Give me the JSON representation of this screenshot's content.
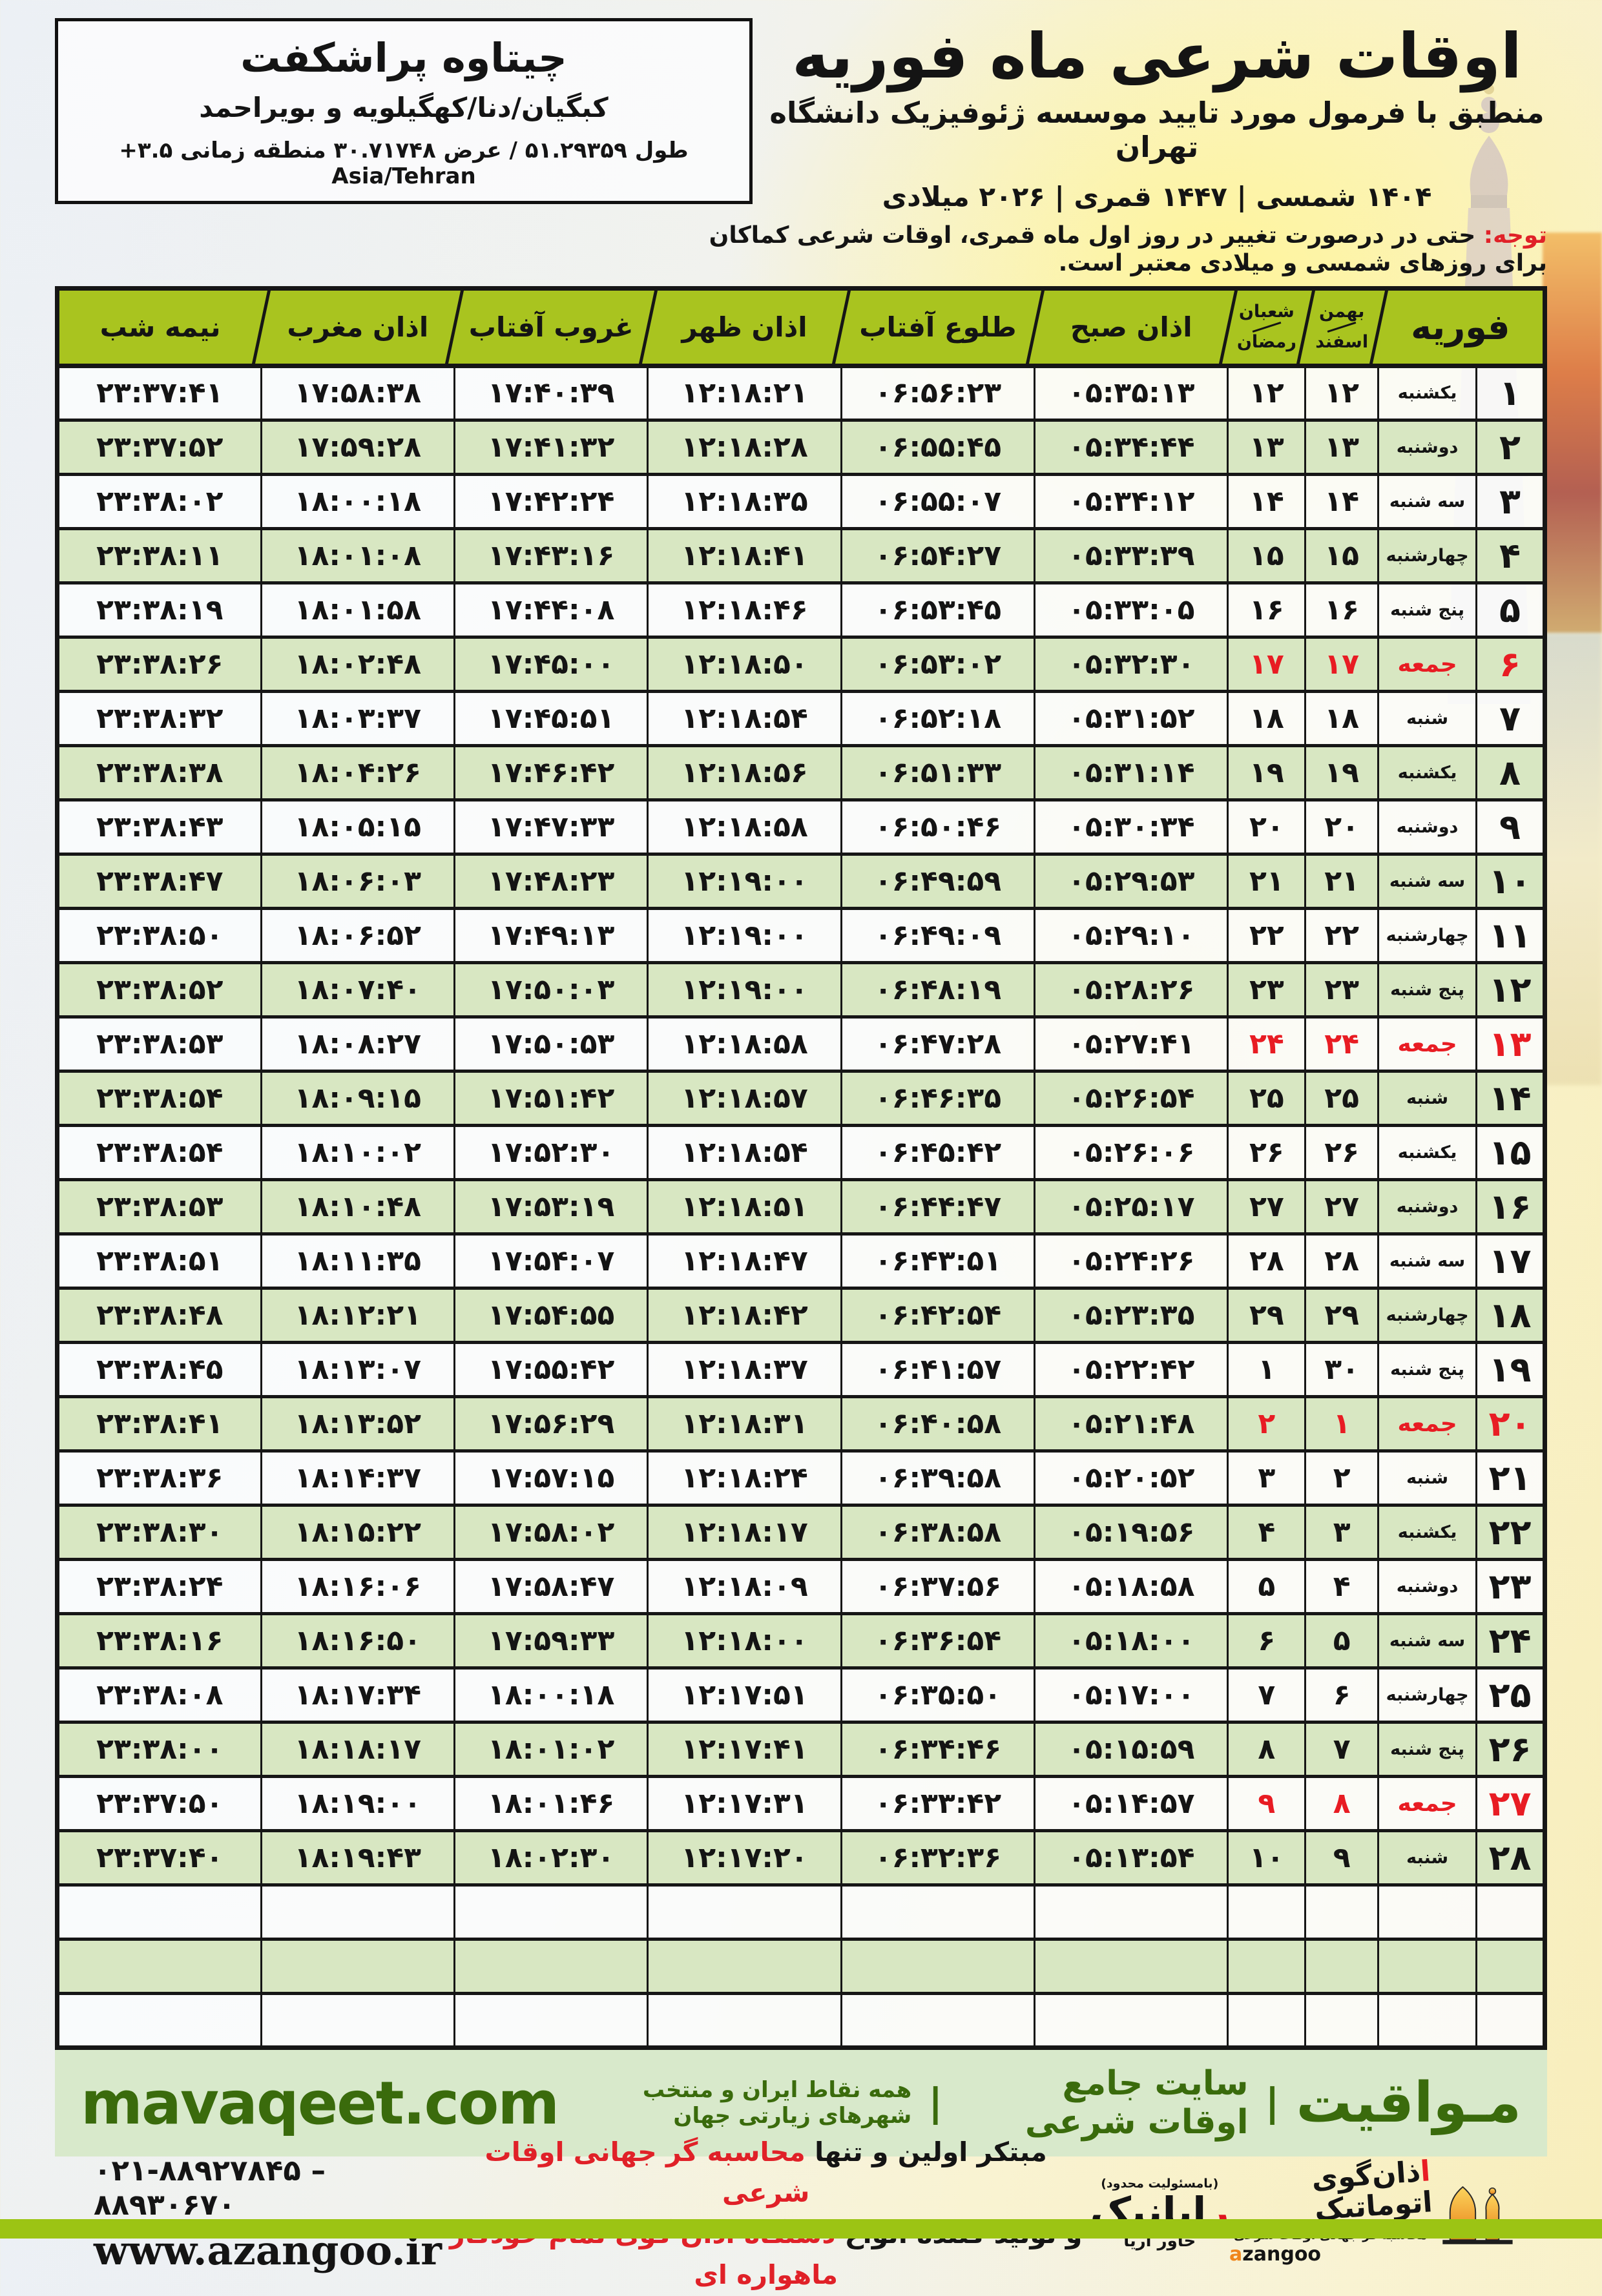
{
  "colors": {
    "header_green": "#a9c41f",
    "row_green": "#d8e7c2",
    "holiday_red": "#e81c23",
    "notice_red": "#e02128",
    "brand_green": "#3a6b0c",
    "band_bg": "#d8e9cb",
    "bottom_bar": "#9cc414",
    "border_black": "#161616",
    "azangoo_orange": "#f0861c"
  },
  "page": {
    "title_block": {
      "title": "اوقات شرعی ماه فوریه",
      "subtitle": "منطبق با فرمول مورد تایید موسسه ژئوفیزیک دانشگاه تهران",
      "years": "۱۴۰۴ شمسی | ۱۴۴۷ قمری | ۲۰۲۶ میلادی"
    },
    "location_box": {
      "title": "چیتاوه پراشکفت",
      "region": "کبگیان/دنا/کهگیلویه و بویراحمد",
      "coords": "طول ۵۱.۲۹۳۵۹ / عرض ۳۰.۷۱۷۴۸ منطقه زمانی ۳.۵+ Asia/Tehran"
    },
    "notice": {
      "label": "توجه:",
      "text": "حتی در درصورت تغییر در روز اول ماه قمری، اوقات شرعی کماکان برای روزهای شمسی و میلادی معتبر است."
    }
  },
  "table": {
    "headers": {
      "month": "فوریه",
      "jalali_top": "بهمن",
      "jalali_bottom": "اسفند",
      "lunar_top": "شعبان",
      "lunar_bottom": "رمضان",
      "sobh": "اذان صبح",
      "tolu": "طلوع آفتاب",
      "zohr": "اذان ظهر",
      "ghorub": "غروب آفتاب",
      "maghreb": "اذان مغرب",
      "nimeshab": "نیمه شب"
    },
    "empty_row_count": 3,
    "rows": [
      {
        "day": "۱",
        "weekday": "یکشنبه",
        "jalali": "۱۲",
        "lunar": "۱۲",
        "sobh": "۰۵:۳۵:۱۳",
        "tolu": "۰۶:۵۶:۲۳",
        "zohr": "۱۲:۱۸:۲۱",
        "ghorub": "۱۷:۴۰:۳۹",
        "maghreb": "۱۷:۵۸:۳۸",
        "nimeshab": "۲۳:۳۷:۴۱",
        "holiday": false
      },
      {
        "day": "۲",
        "weekday": "دوشنبه",
        "jalali": "۱۳",
        "lunar": "۱۳",
        "sobh": "۰۵:۳۴:۴۴",
        "tolu": "۰۶:۵۵:۴۵",
        "zohr": "۱۲:۱۸:۲۸",
        "ghorub": "۱۷:۴۱:۳۲",
        "maghreb": "۱۷:۵۹:۲۸",
        "nimeshab": "۲۳:۳۷:۵۲",
        "holiday": false
      },
      {
        "day": "۳",
        "weekday": "سه شنبه",
        "jalali": "۱۴",
        "lunar": "۱۴",
        "sobh": "۰۵:۳۴:۱۲",
        "tolu": "۰۶:۵۵:۰۷",
        "zohr": "۱۲:۱۸:۳۵",
        "ghorub": "۱۷:۴۲:۲۴",
        "maghreb": "۱۸:۰۰:۱۸",
        "nimeshab": "۲۳:۳۸:۰۲",
        "holiday": false
      },
      {
        "day": "۴",
        "weekday": "چهارشنبه",
        "jalali": "۱۵",
        "lunar": "۱۵",
        "sobh": "۰۵:۳۳:۳۹",
        "tolu": "۰۶:۵۴:۲۷",
        "zohr": "۱۲:۱۸:۴۱",
        "ghorub": "۱۷:۴۳:۱۶",
        "maghreb": "۱۸:۰۱:۰۸",
        "nimeshab": "۲۳:۳۸:۱۱",
        "holiday": false
      },
      {
        "day": "۵",
        "weekday": "پنج شنبه",
        "jalali": "۱۶",
        "lunar": "۱۶",
        "sobh": "۰۵:۳۳:۰۵",
        "tolu": "۰۶:۵۳:۴۵",
        "zohr": "۱۲:۱۸:۴۶",
        "ghorub": "۱۷:۴۴:۰۸",
        "maghreb": "۱۸:۰۱:۵۸",
        "nimeshab": "۲۳:۳۸:۱۹",
        "holiday": false
      },
      {
        "day": "۶",
        "weekday": "جمعه",
        "jalali": "۱۷",
        "lunar": "۱۷",
        "sobh": "۰۵:۳۲:۳۰",
        "tolu": "۰۶:۵۳:۰۲",
        "zohr": "۱۲:۱۸:۵۰",
        "ghorub": "۱۷:۴۵:۰۰",
        "maghreb": "۱۸:۰۲:۴۸",
        "nimeshab": "۲۳:۳۸:۲۶",
        "holiday": true
      },
      {
        "day": "۷",
        "weekday": "شنبه",
        "jalali": "۱۸",
        "lunar": "۱۸",
        "sobh": "۰۵:۳۱:۵۲",
        "tolu": "۰۶:۵۲:۱۸",
        "zohr": "۱۲:۱۸:۵۴",
        "ghorub": "۱۷:۴۵:۵۱",
        "maghreb": "۱۸:۰۳:۳۷",
        "nimeshab": "۲۳:۳۸:۳۲",
        "holiday": false
      },
      {
        "day": "۸",
        "weekday": "یکشنبه",
        "jalali": "۱۹",
        "lunar": "۱۹",
        "sobh": "۰۵:۳۱:۱۴",
        "tolu": "۰۶:۵۱:۳۳",
        "zohr": "۱۲:۱۸:۵۶",
        "ghorub": "۱۷:۴۶:۴۲",
        "maghreb": "۱۸:۰۴:۲۶",
        "nimeshab": "۲۳:۳۸:۳۸",
        "holiday": false
      },
      {
        "day": "۹",
        "weekday": "دوشنبه",
        "jalali": "۲۰",
        "lunar": "۲۰",
        "sobh": "۰۵:۳۰:۳۴",
        "tolu": "۰۶:۵۰:۴۶",
        "zohr": "۱۲:۱۸:۵۸",
        "ghorub": "۱۷:۴۷:۳۳",
        "maghreb": "۱۸:۰۵:۱۵",
        "nimeshab": "۲۳:۳۸:۴۳",
        "holiday": false
      },
      {
        "day": "۱۰",
        "weekday": "سه شنبه",
        "jalali": "۲۱",
        "lunar": "۲۱",
        "sobh": "۰۵:۲۹:۵۳",
        "tolu": "۰۶:۴۹:۵۹",
        "zohr": "۱۲:۱۹:۰۰",
        "ghorub": "۱۷:۴۸:۲۳",
        "maghreb": "۱۸:۰۶:۰۳",
        "nimeshab": "۲۳:۳۸:۴۷",
        "holiday": false
      },
      {
        "day": "۱۱",
        "weekday": "چهارشنبه",
        "jalali": "۲۲",
        "lunar": "۲۲",
        "sobh": "۰۵:۲۹:۱۰",
        "tolu": "۰۶:۴۹:۰۹",
        "zohr": "۱۲:۱۹:۰۰",
        "ghorub": "۱۷:۴۹:۱۳",
        "maghreb": "۱۸:۰۶:۵۲",
        "nimeshab": "۲۳:۳۸:۵۰",
        "holiday": false
      },
      {
        "day": "۱۲",
        "weekday": "پنج شنبه",
        "jalali": "۲۳",
        "lunar": "۲۳",
        "sobh": "۰۵:۲۸:۲۶",
        "tolu": "۰۶:۴۸:۱۹",
        "zohr": "۱۲:۱۹:۰۰",
        "ghorub": "۱۷:۵۰:۰۳",
        "maghreb": "۱۸:۰۷:۴۰",
        "nimeshab": "۲۳:۳۸:۵۲",
        "holiday": false
      },
      {
        "day": "۱۳",
        "weekday": "جمعه",
        "jalali": "۲۴",
        "lunar": "۲۴",
        "sobh": "۰۵:۲۷:۴۱",
        "tolu": "۰۶:۴۷:۲۸",
        "zohr": "۱۲:۱۸:۵۸",
        "ghorub": "۱۷:۵۰:۵۳",
        "maghreb": "۱۸:۰۸:۲۷",
        "nimeshab": "۲۳:۳۸:۵۳",
        "holiday": true
      },
      {
        "day": "۱۴",
        "weekday": "شنبه",
        "jalali": "۲۵",
        "lunar": "۲۵",
        "sobh": "۰۵:۲۶:۵۴",
        "tolu": "۰۶:۴۶:۳۵",
        "zohr": "۱۲:۱۸:۵۷",
        "ghorub": "۱۷:۵۱:۴۲",
        "maghreb": "۱۸:۰۹:۱۵",
        "nimeshab": "۲۳:۳۸:۵۴",
        "holiday": false
      },
      {
        "day": "۱۵",
        "weekday": "یکشنبه",
        "jalali": "۲۶",
        "lunar": "۲۶",
        "sobh": "۰۵:۲۶:۰۶",
        "tolu": "۰۶:۴۵:۴۲",
        "zohr": "۱۲:۱۸:۵۴",
        "ghorub": "۱۷:۵۲:۳۰",
        "maghreb": "۱۸:۱۰:۰۲",
        "nimeshab": "۲۳:۳۸:۵۴",
        "holiday": false
      },
      {
        "day": "۱۶",
        "weekday": "دوشنبه",
        "jalali": "۲۷",
        "lunar": "۲۷",
        "sobh": "۰۵:۲۵:۱۷",
        "tolu": "۰۶:۴۴:۴۷",
        "zohr": "۱۲:۱۸:۵۱",
        "ghorub": "۱۷:۵۳:۱۹",
        "maghreb": "۱۸:۱۰:۴۸",
        "nimeshab": "۲۳:۳۸:۵۳",
        "holiday": false
      },
      {
        "day": "۱۷",
        "weekday": "سه شنبه",
        "jalali": "۲۸",
        "lunar": "۲۸",
        "sobh": "۰۵:۲۴:۲۶",
        "tolu": "۰۶:۴۳:۵۱",
        "zohr": "۱۲:۱۸:۴۷",
        "ghorub": "۱۷:۵۴:۰۷",
        "maghreb": "۱۸:۱۱:۳۵",
        "nimeshab": "۲۳:۳۸:۵۱",
        "holiday": false
      },
      {
        "day": "۱۸",
        "weekday": "چهارشنبه",
        "jalali": "۲۹",
        "lunar": "۲۹",
        "sobh": "۰۵:۲۳:۳۵",
        "tolu": "۰۶:۴۲:۵۴",
        "zohr": "۱۲:۱۸:۴۲",
        "ghorub": "۱۷:۵۴:۵۵",
        "maghreb": "۱۸:۱۲:۲۱",
        "nimeshab": "۲۳:۳۸:۴۸",
        "holiday": false
      },
      {
        "day": "۱۹",
        "weekday": "پنج شنبه",
        "jalali": "۳۰",
        "lunar": "۱",
        "sobh": "۰۵:۲۲:۴۲",
        "tolu": "۰۶:۴۱:۵۷",
        "zohr": "۱۲:۱۸:۳۷",
        "ghorub": "۱۷:۵۵:۴۲",
        "maghreb": "۱۸:۱۳:۰۷",
        "nimeshab": "۲۳:۳۸:۴۵",
        "holiday": false
      },
      {
        "day": "۲۰",
        "weekday": "جمعه",
        "jalali": "۱",
        "lunar": "۲",
        "sobh": "۰۵:۲۱:۴۸",
        "tolu": "۰۶:۴۰:۵۸",
        "zohr": "۱۲:۱۸:۳۱",
        "ghorub": "۱۷:۵۶:۲۹",
        "maghreb": "۱۸:۱۳:۵۲",
        "nimeshab": "۲۳:۳۸:۴۱",
        "holiday": true
      },
      {
        "day": "۲۱",
        "weekday": "شنبه",
        "jalali": "۲",
        "lunar": "۳",
        "sobh": "۰۵:۲۰:۵۲",
        "tolu": "۰۶:۳۹:۵۸",
        "zohr": "۱۲:۱۸:۲۴",
        "ghorub": "۱۷:۵۷:۱۵",
        "maghreb": "۱۸:۱۴:۳۷",
        "nimeshab": "۲۳:۳۸:۳۶",
        "holiday": false
      },
      {
        "day": "۲۲",
        "weekday": "یکشنبه",
        "jalali": "۳",
        "lunar": "۴",
        "sobh": "۰۵:۱۹:۵۶",
        "tolu": "۰۶:۳۸:۵۸",
        "zohr": "۱۲:۱۸:۱۷",
        "ghorub": "۱۷:۵۸:۰۲",
        "maghreb": "۱۸:۱۵:۲۲",
        "nimeshab": "۲۳:۳۸:۳۰",
        "holiday": false
      },
      {
        "day": "۲۳",
        "weekday": "دوشنبه",
        "jalali": "۴",
        "lunar": "۵",
        "sobh": "۰۵:۱۸:۵۸",
        "tolu": "۰۶:۳۷:۵۶",
        "zohr": "۱۲:۱۸:۰۹",
        "ghorub": "۱۷:۵۸:۴۷",
        "maghreb": "۱۸:۱۶:۰۶",
        "nimeshab": "۲۳:۳۸:۲۴",
        "holiday": false
      },
      {
        "day": "۲۴",
        "weekday": "سه شنبه",
        "jalali": "۵",
        "lunar": "۶",
        "sobh": "۰۵:۱۸:۰۰",
        "tolu": "۰۶:۳۶:۵۴",
        "zohr": "۱۲:۱۸:۰۰",
        "ghorub": "۱۷:۵۹:۳۳",
        "maghreb": "۱۸:۱۶:۵۰",
        "nimeshab": "۲۳:۳۸:۱۶",
        "holiday": false
      },
      {
        "day": "۲۵",
        "weekday": "چهارشنبه",
        "jalali": "۶",
        "lunar": "۷",
        "sobh": "۰۵:۱۷:۰۰",
        "tolu": "۰۶:۳۵:۵۰",
        "zohr": "۱۲:۱۷:۵۱",
        "ghorub": "۱۸:۰۰:۱۸",
        "maghreb": "۱۸:۱۷:۳۴",
        "nimeshab": "۲۳:۳۸:۰۸",
        "holiday": false
      },
      {
        "day": "۲۶",
        "weekday": "پنج شنبه",
        "jalali": "۷",
        "lunar": "۸",
        "sobh": "۰۵:۱۵:۵۹",
        "tolu": "۰۶:۳۴:۴۶",
        "zohr": "۱۲:۱۷:۴۱",
        "ghorub": "۱۸:۰۱:۰۲",
        "maghreb": "۱۸:۱۸:۱۷",
        "nimeshab": "۲۳:۳۸:۰۰",
        "holiday": false
      },
      {
        "day": "۲۷",
        "weekday": "جمعه",
        "jalali": "۸",
        "lunar": "۹",
        "sobh": "۰۵:۱۴:۵۷",
        "tolu": "۰۶:۳۳:۴۲",
        "zohr": "۱۲:۱۷:۳۱",
        "ghorub": "۱۸:۰۱:۴۶",
        "maghreb": "۱۸:۱۹:۰۰",
        "nimeshab": "۲۳:۳۷:۵۰",
        "holiday": true
      },
      {
        "day": "۲۸",
        "weekday": "شنبه",
        "jalali": "۹",
        "lunar": "۱۰",
        "sobh": "۰۵:۱۳:۵۴",
        "tolu": "۰۶:۳۲:۳۶",
        "zohr": "۱۲:۱۷:۲۰",
        "ghorub": "۱۸:۰۲:۳۰",
        "maghreb": "۱۸:۱۹:۴۳",
        "nimeshab": "۲۳:۳۷:۴۰",
        "holiday": false
      }
    ]
  },
  "footer": {
    "mavaqeet": {
      "brand": "مـواقیت",
      "divider": "|",
      "tagline_primary": "سایت جامع اوقات شرعی",
      "tagline_secondary": "همه نقاط ایران و منتخب شهرهای زیارتی جهان",
      "url": "mavaqeet.com"
    },
    "promo": {
      "line1_black": "مبتکر اولین و تنها",
      "line1_red": "محاسبه گر جهانی اوقات شرعی",
      "line2_black": "و تولید کننده انواع",
      "line2_red": "دستگاه اذان گوی تمام خودکار ماهواره ای"
    },
    "contact": {
      "phones": "۰۲۱-۸۸۹۲۷۸۴۵ – ۸۸۹۳۰۶۷۰",
      "website": "www.azangoo.ir"
    },
    "rayanik": {
      "note": "(بامسئولیت محدود)",
      "name_first": "ر",
      "name_rest": "ایانیک",
      "sub": "خاور آریا"
    },
    "azangoo": {
      "name_first": "ا",
      "name_rest": "ذان‌گوی اتوماتیک",
      "tagline": "محاسبه گر جهانی اوقات شرعی",
      "latin_first": "a",
      "latin_rest": "zangoo"
    }
  }
}
